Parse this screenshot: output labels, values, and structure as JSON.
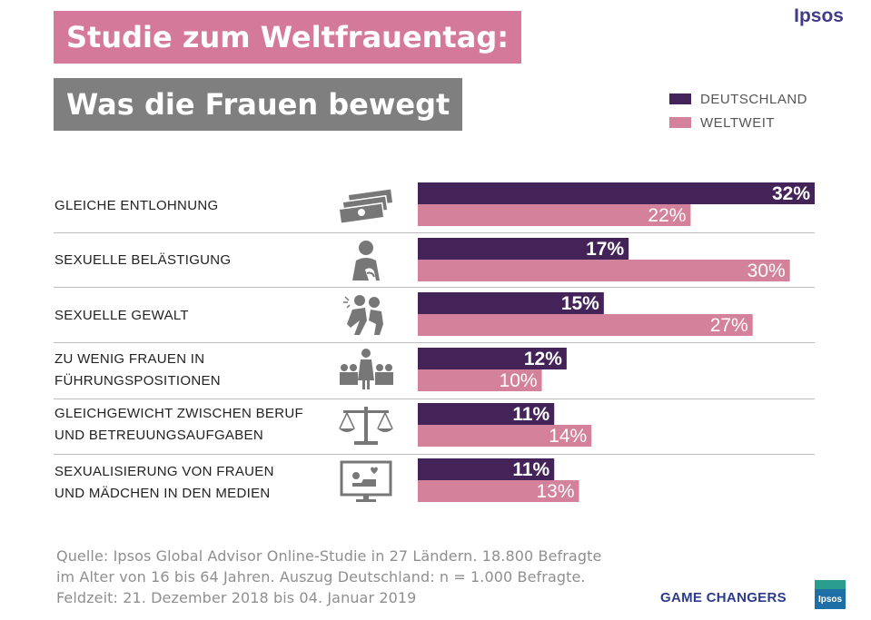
{
  "header": {
    "title_line1": "Studie zum Weltfrauentag:",
    "title_line2": "Was die Frauen bewegt",
    "brand": "Ipsos"
  },
  "legend": [
    {
      "label": "DEUTSCHLAND",
      "color": "#432358"
    },
    {
      "label": "WELTWEIT",
      "color": "#d4819b"
    }
  ],
  "rows": [
    {
      "label_lines": [
        "GLEICHE ENTLOHNUNG"
      ],
      "icon": "money-icon",
      "de_label": "32%",
      "ww_label": "22%"
    },
    {
      "label_lines": [
        "SEXUELLE BELÄSTIGUNG"
      ],
      "icon": "harassment-icon",
      "de_label": "17%",
      "ww_label": "30%"
    },
    {
      "label_lines": [
        "SEXUELLE GEWALT"
      ],
      "icon": "violence-icon",
      "de_label": "15%",
      "ww_label": "27%"
    },
    {
      "label_lines": [
        "ZU WENIG FRAUEN IN",
        "FÜHRUNGSPOSITIONEN"
      ],
      "icon": "leadership-icon",
      "de_label": "12%",
      "ww_label": "10%"
    },
    {
      "label_lines": [
        "GLEICHGEWICHT ZWISCHEN BERUF",
        "UND BETREUUNGSAUFGABEN"
      ],
      "icon": "scale-icon",
      "de_label": "11%",
      "ww_label": "14%"
    },
    {
      "label_lines": [
        "SEXUALISIERUNG VON FRAUEN",
        "UND MÄDCHEN IN DEN MEDIEN"
      ],
      "icon": "media-icon",
      "de_label": "11%",
      "ww_label": "13%"
    }
  ],
  "chart_data": {
    "type": "bar",
    "orientation": "horizontal",
    "categories": [
      "GLEICHE ENTLOHNUNG",
      "SEXUELLE BELÄSTIGUNG",
      "SEXUELLE GEWALT",
      "ZU WENIG FRAUEN IN FÜHRUNGSPOSITIONEN",
      "GLEICHGEWICHT ZWISCHEN BERUF UND BETREUUNGSAUFGABEN",
      "SEXUALISIERUNG VON FRAUEN UND MÄDCHEN IN DEN MEDIEN"
    ],
    "series": [
      {
        "name": "DEUTSCHLAND",
        "color": "#432358",
        "values": [
          32,
          17,
          15,
          12,
          11,
          11
        ]
      },
      {
        "name": "WELTWEIT",
        "color": "#d4819b",
        "values": [
          22,
          30,
          27,
          10,
          14,
          13
        ]
      }
    ],
    "xlim": [
      0,
      32
    ],
    "grid": false,
    "legend_position": "top-right"
  },
  "source": {
    "lines": [
      "Quelle: Ipsos Global Advisor Online-Studie in 27 Ländern. 18.800 Befragte",
      "im Alter von 16 bis 64 Jahren. Auszug Deutschland: n = 1.000 Befragte.",
      "Feldzeit: 21. Dezember 2018 bis 04. Januar 2019"
    ]
  },
  "footer": {
    "tagline": "GAME CHANGERS",
    "logo_text": "Ipsos"
  }
}
